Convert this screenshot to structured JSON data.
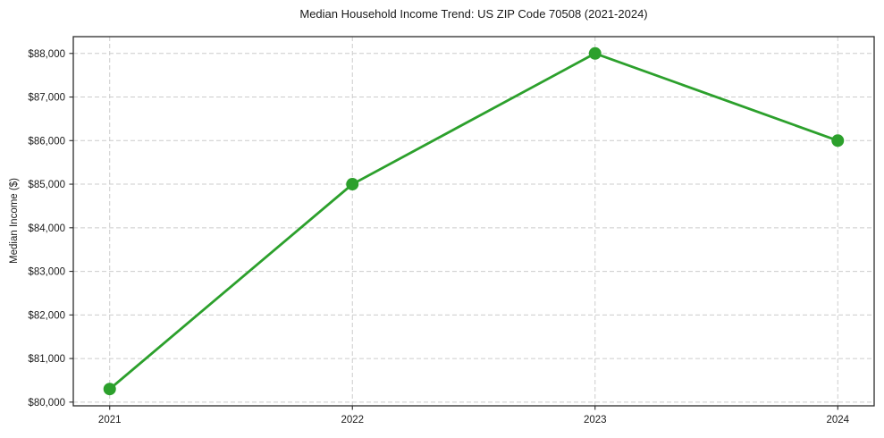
{
  "chart_data": {
    "type": "line",
    "title": "Median Household Income Trend: US ZIP Code 70508 (2021-2024)",
    "xlabel": "",
    "ylabel": "Median Income ($)",
    "x": [
      2021,
      2022,
      2023,
      2024
    ],
    "x_tick_labels": [
      "2021",
      "2022",
      "2023",
      "2024"
    ],
    "series": [
      {
        "name": "Median Household Income",
        "values": [
          80300,
          85000,
          88000,
          86000
        ]
      }
    ],
    "y_ticks": [
      80000,
      81000,
      82000,
      83000,
      84000,
      85000,
      86000,
      87000,
      88000
    ],
    "y_tick_labels": [
      "$80,000",
      "$81,000",
      "$82,000",
      "$83,000",
      "$84,000",
      "$85,000",
      "$86,000",
      "$87,000",
      "$88,000"
    ],
    "xlim": [
      2020.85,
      2024.15
    ],
    "ylim": [
      79915,
      88385
    ],
    "grid": true,
    "grid_style": "dashed",
    "legend": "none",
    "marker": "circle",
    "colors": {
      "line": "#2ca02c",
      "marker": "#2ca02c",
      "grid": "#cccccc",
      "spine": "#2b2b2b",
      "tick": "#2b2b2b",
      "text": "#1a1a1a",
      "background": "#ffffff"
    }
  }
}
